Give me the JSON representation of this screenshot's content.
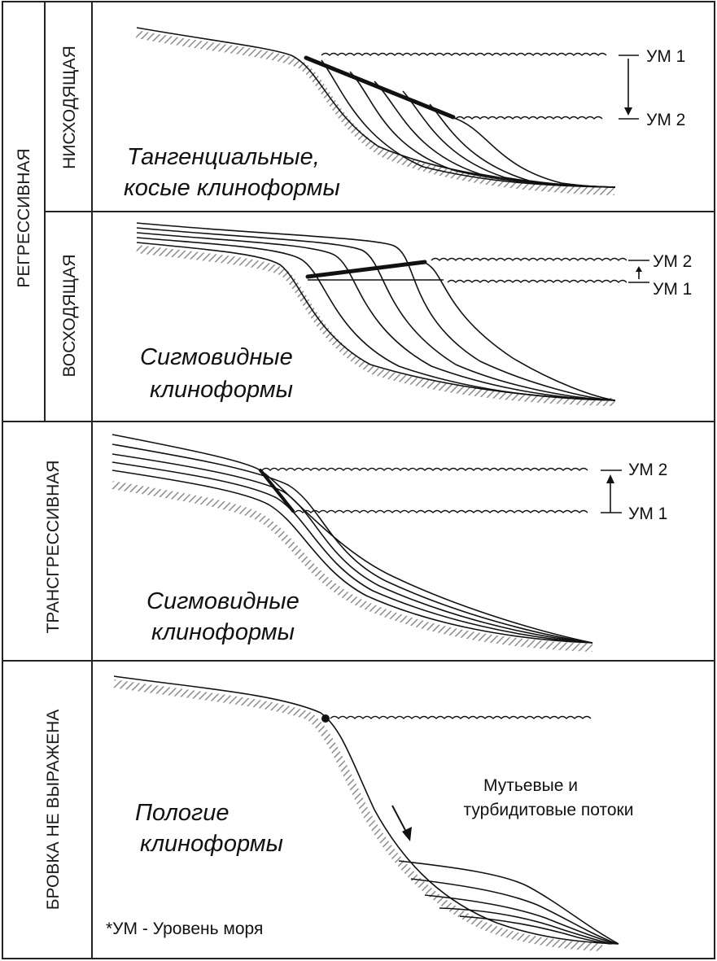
{
  "labels": {
    "regressive": "РЕГРЕССИВНАЯ",
    "descending": "НИСХОДЯЩАЯ",
    "ascending": "ВОСХОДЯЩАЯ",
    "transgressive": "ТРАНСГРЕССИВНАЯ",
    "no_edge": "БРОВКА НЕ ВЫРАЖЕНА"
  },
  "panel1": {
    "title_line1": "Тангенциальные,",
    "title_line2": "косые клиноформы",
    "sea_level_upper": "УМ 1",
    "sea_level_lower": "УМ 2"
  },
  "panel2": {
    "title_line1": "Сигмовидные",
    "title_line2": "клиноформы",
    "sea_level_upper": "УМ 2",
    "sea_level_lower": "УМ 1"
  },
  "panel3": {
    "title_line1": "Сигмовидные",
    "title_line2": "клиноформы",
    "sea_level_upper": "УМ 2",
    "sea_level_lower": "УМ 1"
  },
  "panel4": {
    "title_line1": "Пологие",
    "title_line2": "клиноформы",
    "flows_line1": "Мутьевые и",
    "flows_line2": "турбидитовые потоки",
    "footnote": "*УМ - Уровень моря"
  },
  "colors": {
    "line": "#111111",
    "hatch": "#9a9a9a"
  }
}
